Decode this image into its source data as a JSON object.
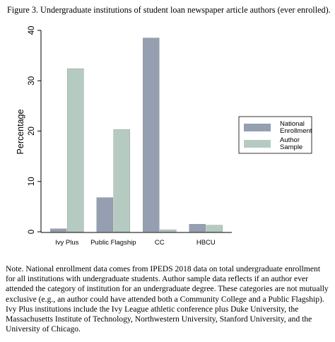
{
  "figure_title": "Figure 3. Undergraduate institutions of student loan newspaper article authors (ever enrolled).",
  "note": "Note. National enrollment data comes from IPEDS 2018 data on total undergraduate enrollment for all institutions with undergraduate students. Author sample data reflects if an author ever attended the category of institution for an undergraduate degree. These categories are not mutually exclusive (e.g., an author could have attended both a Community College and a Public Flagship). Ivy Plus institutions include the Ivy League athletic conference plus Duke University, the Massachusetts Institute of Technology, Northwestern University, Stanford University, and the University of Chicago.",
  "colors": {
    "national": "#959fb1",
    "author": "#b5cbc1",
    "axis": "#000000"
  },
  "chart_data": {
    "type": "bar",
    "categories": [
      "Ivy Plus",
      "Public Flagship",
      "CC",
      "HBCU"
    ],
    "series": [
      {
        "name": "National Enrollment",
        "legend_lines": [
          "National",
          "Enrollment"
        ],
        "values": [
          0.6,
          6.8,
          38.5,
          1.5
        ]
      },
      {
        "name": "Author Sample",
        "legend_lines": [
          "Author",
          "Sample"
        ],
        "values": [
          32.4,
          20.3,
          0.4,
          1.3
        ]
      }
    ],
    "title": "",
    "xlabel": "",
    "ylabel": "Percentage",
    "ylim": [
      0,
      40
    ],
    "yticks": [
      0,
      10,
      20,
      30,
      40
    ],
    "grid": false,
    "legend_position": "right"
  }
}
